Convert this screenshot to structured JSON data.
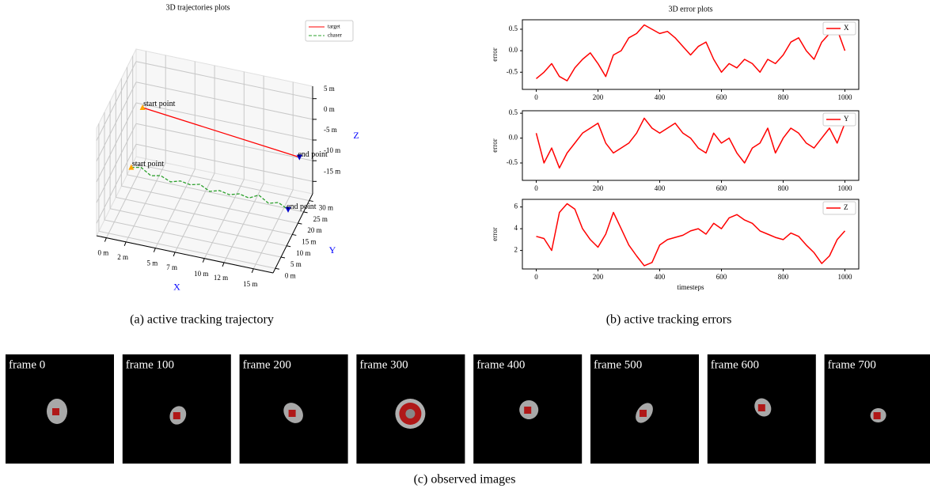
{
  "chart_data": [
    {
      "type": "line3d",
      "title": "3D trajectories plots",
      "xlabel": "X",
      "ylabel": "Y",
      "zlabel": "Z",
      "xlim": [
        -1,
        17
      ],
      "ylim": [
        -2,
        33
      ],
      "zlim": [
        -18,
        8
      ],
      "xticks": [
        {
          "value": 0,
          "label": "0 m"
        },
        {
          "value": 2,
          "label": "2 m"
        },
        {
          "value": 5,
          "label": "5 m"
        },
        {
          "value": 7,
          "label": "7 m"
        },
        {
          "value": 10,
          "label": "10 m"
        },
        {
          "value": 12,
          "label": "12 m"
        },
        {
          "value": 15,
          "label": "15 m"
        }
      ],
      "yticks": [
        {
          "value": 0,
          "label": "0 m"
        },
        {
          "value": 5,
          "label": "5 m"
        },
        {
          "value": 10,
          "label": "10 m"
        },
        {
          "value": 15,
          "label": "15 m"
        },
        {
          "value": 20,
          "label": "20 m"
        },
        {
          "value": 25,
          "label": "25 m"
        },
        {
          "value": 30,
          "label": "30 m"
        }
      ],
      "zticks": [
        {
          "value": 5,
          "label": "5 m"
        },
        {
          "value": 0,
          "label": "0 m"
        },
        {
          "value": -5,
          "label": "-5 m"
        },
        {
          "value": -10,
          "label": "-10 m"
        },
        {
          "value": -15,
          "label": "-15 m"
        }
      ],
      "grid": true,
      "legend": "upper right",
      "series": [
        {
          "name": "target",
          "color": "#ff0000",
          "style": "solid",
          "x": [
            0,
            16
          ],
          "y": [
            30,
            30
          ],
          "z": [
            -4,
            -8
          ],
          "start_label": "start point",
          "end_label": "end point"
        },
        {
          "name": "chaser",
          "color": "#2ca02c",
          "style": "dashed",
          "x": [
            0,
            1,
            2,
            3,
            4,
            5,
            6,
            7,
            8,
            9,
            10,
            11,
            12,
            13,
            14,
            15,
            16
          ],
          "y": [
            20,
            20,
            20,
            20,
            20,
            20,
            20,
            20,
            20,
            20,
            20,
            20,
            20,
            20,
            20,
            20,
            20
          ],
          "z": [
            -13,
            -12.5,
            -14,
            -13.5,
            -14.5,
            -13.8,
            -14.2,
            -13.6,
            -14.8,
            -14.1,
            -14.6,
            -13.9,
            -14.4,
            -13.2,
            -14.7,
            -14,
            -15.2
          ],
          "start_label": "start point",
          "end_label": "end point"
        }
      ]
    },
    {
      "type": "line",
      "title": "3D error plots",
      "ylabel": "error",
      "x": [
        0,
        25,
        50,
        75,
        100,
        125,
        150,
        175,
        200,
        225,
        250,
        275,
        300,
        325,
        350,
        375,
        400,
        425,
        450,
        475,
        500,
        525,
        550,
        575,
        600,
        625,
        650,
        675,
        700,
        725,
        750,
        775,
        800,
        825,
        850,
        875,
        900,
        925,
        950,
        975,
        1000
      ],
      "xlim": [
        -45,
        1045
      ],
      "xticks": [
        0,
        200,
        400,
        600,
        800,
        1000
      ],
      "ylim": [
        -0.9,
        0.72
      ],
      "yticks": [
        -0.5,
        {
          "value": 0,
          "label": "0.0"
        },
        0.5
      ],
      "legend": "upper right",
      "series": [
        {
          "name": "X",
          "color": "#ff0000",
          "values": [
            -0.65,
            -0.5,
            -0.3,
            -0.6,
            -0.7,
            -0.4,
            -0.2,
            -0.05,
            -0.3,
            -0.6,
            -0.1,
            0.0,
            0.3,
            0.4,
            0.6,
            0.5,
            0.4,
            0.45,
            0.3,
            0.1,
            -0.1,
            0.1,
            0.2,
            -0.2,
            -0.5,
            -0.3,
            -0.4,
            -0.2,
            -0.3,
            -0.5,
            -0.2,
            -0.3,
            -0.1,
            0.2,
            0.3,
            0.0,
            -0.2,
            0.2,
            0.4,
            0.5,
            0.0
          ]
        }
      ]
    },
    {
      "type": "line",
      "ylabel": "error",
      "x": [
        0,
        25,
        50,
        75,
        100,
        125,
        150,
        175,
        200,
        225,
        250,
        275,
        300,
        325,
        350,
        375,
        400,
        425,
        450,
        475,
        500,
        525,
        550,
        575,
        600,
        625,
        650,
        675,
        700,
        725,
        750,
        775,
        800,
        825,
        850,
        875,
        900,
        925,
        950,
        975,
        1000
      ],
      "xlim": [
        -45,
        1045
      ],
      "xticks": [
        0,
        200,
        400,
        600,
        800,
        1000
      ],
      "ylim": [
        -0.85,
        0.55
      ],
      "yticks": [
        -0.5,
        {
          "value": 0,
          "label": "0.0"
        },
        0.5
      ],
      "legend": "upper right",
      "series": [
        {
          "name": "Y",
          "color": "#ff0000",
          "values": [
            0.1,
            -0.5,
            -0.2,
            -0.6,
            -0.3,
            -0.1,
            0.1,
            0.2,
            0.3,
            -0.1,
            -0.3,
            -0.2,
            -0.1,
            0.1,
            0.4,
            0.2,
            0.1,
            0.2,
            0.3,
            0.1,
            0.0,
            -0.2,
            -0.3,
            0.1,
            -0.1,
            0.0,
            -0.3,
            -0.5,
            -0.2,
            -0.1,
            0.2,
            -0.3,
            0.0,
            0.2,
            0.1,
            -0.1,
            -0.2,
            0.0,
            0.2,
            -0.1,
            0.3
          ]
        }
      ]
    },
    {
      "type": "line",
      "ylabel": "error",
      "xlabel": "timesteps",
      "x": [
        0,
        25,
        50,
        75,
        100,
        125,
        150,
        175,
        200,
        225,
        250,
        275,
        300,
        325,
        350,
        375,
        400,
        425,
        450,
        475,
        500,
        525,
        550,
        575,
        600,
        625,
        650,
        675,
        700,
        725,
        750,
        775,
        800,
        825,
        850,
        875,
        900,
        925,
        950,
        975,
        1000
      ],
      "xlim": [
        -45,
        1045
      ],
      "xticks": [
        0,
        200,
        400,
        600,
        800,
        1000
      ],
      "ylim": [
        0.3,
        6.7
      ],
      "yticks": [
        2,
        4,
        6
      ],
      "legend": "upper right",
      "series": [
        {
          "name": "Z",
          "color": "#ff0000",
          "values": [
            3.3,
            3.1,
            2.0,
            5.5,
            6.3,
            5.8,
            4.0,
            3.0,
            2.3,
            3.5,
            5.5,
            4.0,
            2.5,
            1.5,
            0.6,
            0.9,
            2.5,
            3.0,
            3.2,
            3.4,
            3.8,
            4.0,
            3.5,
            4.5,
            4.0,
            5.0,
            5.3,
            4.8,
            4.5,
            3.8,
            3.5,
            3.2,
            3.0,
            3.6,
            3.3,
            2.5,
            1.8,
            0.8,
            1.5,
            3.0,
            3.8
          ]
        }
      ]
    }
  ],
  "captions": [
    "(a) active tracking trajectory",
    "(b) active tracking errors",
    "(c) observed images"
  ],
  "frames": [
    "frame 0",
    "frame 100",
    "frame 200",
    "frame 300",
    "frame 400",
    "frame 500",
    "frame 600",
    "frame 700"
  ]
}
